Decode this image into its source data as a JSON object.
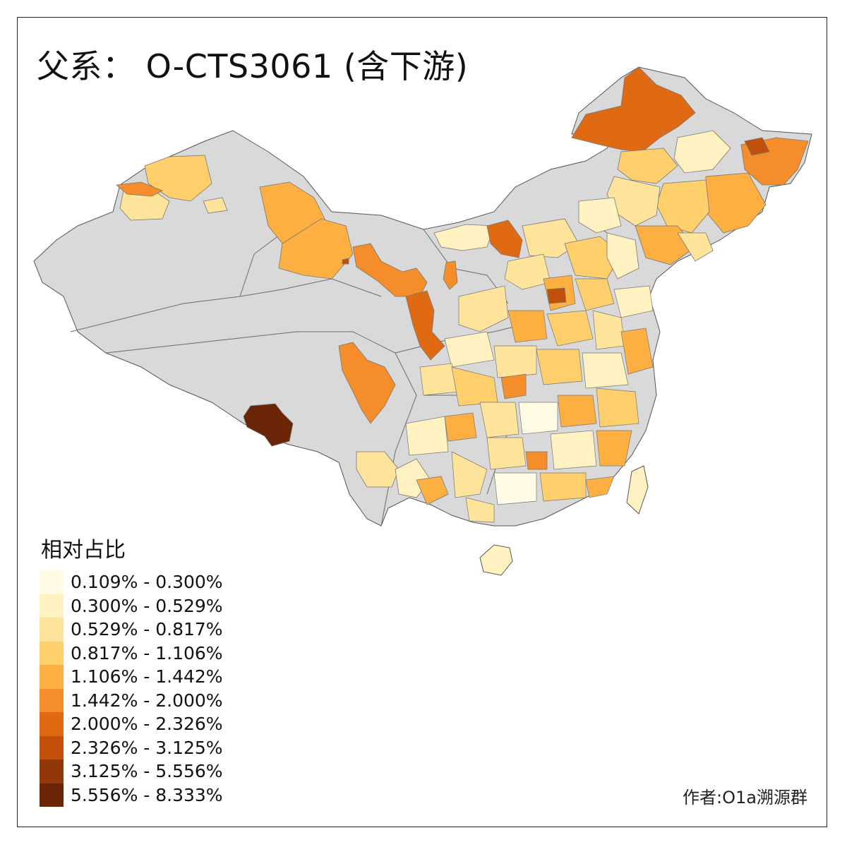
{
  "title": "父系： O-CTS3061 (含下游)",
  "legend": {
    "title": "相对占比",
    "items": [
      {
        "label": "0.109% - 0.300%",
        "color": "#FFFBE4"
      },
      {
        "label": "0.300% - 0.529%",
        "color": "#FFF2C0"
      },
      {
        "label": "0.529% - 0.817%",
        "color": "#FEE39A"
      },
      {
        "label": "0.817% - 1.106%",
        "color": "#FECF6A"
      },
      {
        "label": "1.106% - 1.442%",
        "color": "#FDAF42"
      },
      {
        "label": "1.442% - 2.000%",
        "color": "#F58E2A"
      },
      {
        "label": "2.000% - 2.326%",
        "color": "#E06A14"
      },
      {
        "label": "2.326% - 3.125%",
        "color": "#C24F0A"
      },
      {
        "label": "3.125% - 5.556%",
        "color": "#943708"
      },
      {
        "label": "5.556% - 8.333%",
        "color": "#6A2406"
      }
    ]
  },
  "no_data_color": "#D9D9D9",
  "credit": "作者:O1a溯源群"
}
